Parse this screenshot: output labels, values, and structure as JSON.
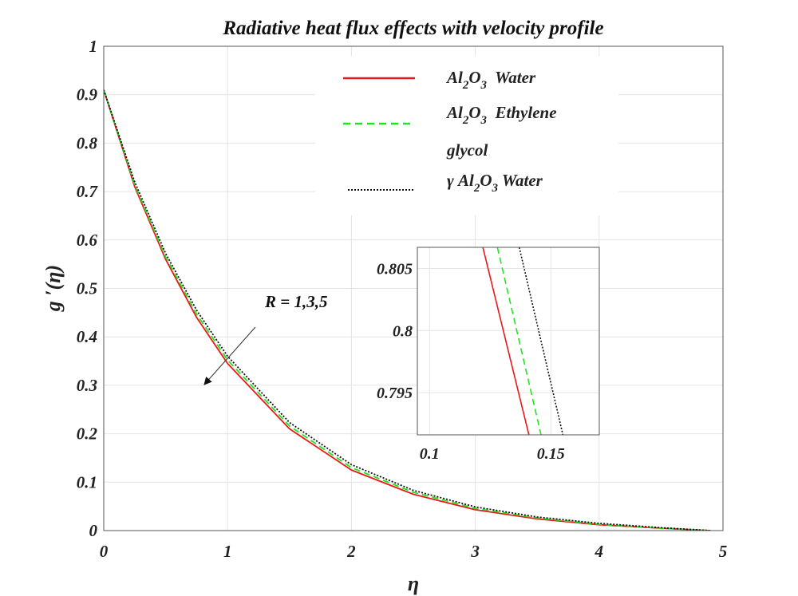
{
  "chart_data": {
    "type": "line",
    "title": "Radiative heat flux effects with velocity profile",
    "xlabel": "η",
    "ylabel": "g ′(η)",
    "xlim": [
      0,
      5
    ],
    "ylim": [
      0,
      1
    ],
    "xticks": [
      "0",
      "1",
      "2",
      "3",
      "4",
      "5"
    ],
    "yticks": [
      "0",
      "0.1",
      "0.2",
      "0.3",
      "0.4",
      "0.5",
      "0.6",
      "0.7",
      "0.8",
      "0.9",
      "1"
    ],
    "grid": true,
    "legend_position": "top-right",
    "legend": [
      {
        "prefix": "",
        "main": "Al",
        "sub1": "2",
        "mid": "O",
        "sub2": "3",
        "suffix": "  Water",
        "extra": "",
        "color": "#e8191b",
        "style": "solid"
      },
      {
        "prefix": "",
        "main": "Al",
        "sub1": "2",
        "mid": "O",
        "sub2": "3",
        "suffix": "  Ethylene",
        "extra": "glycol",
        "color": "#1fe51f",
        "style": "dashed"
      },
      {
        "prefix": "γ ",
        "main": "Al",
        "sub1": "2",
        "mid": "O",
        "sub2": "3",
        "suffix": " Water",
        "extra": "",
        "color": "#111111",
        "style": "dotted"
      }
    ],
    "annotation": "R = 1,3,5",
    "series": [
      {
        "color": "#e8191b",
        "style": "solid",
        "x": [
          0,
          0.25,
          0.5,
          0.75,
          1,
          1.5,
          2,
          2.5,
          3,
          3.5,
          4,
          4.5,
          4.9
        ],
        "y": [
          0.91,
          0.71,
          0.56,
          0.44,
          0.345,
          0.21,
          0.125,
          0.075,
          0.043,
          0.024,
          0.012,
          0.005,
          0
        ]
      },
      {
        "color": "#1fe51f",
        "style": "dashed",
        "x": [
          0,
          0.25,
          0.5,
          0.75,
          1,
          1.5,
          2,
          2.5,
          3,
          3.5,
          4,
          4.5,
          4.9
        ],
        "y": [
          0.91,
          0.714,
          0.565,
          0.447,
          0.352,
          0.216,
          0.13,
          0.079,
          0.046,
          0.026,
          0.013,
          0.005,
          0
        ]
      },
      {
        "color": "#111111",
        "style": "dotted",
        "x": [
          0,
          0.25,
          0.5,
          0.75,
          1,
          1.5,
          2,
          2.5,
          3,
          3.5,
          4,
          4.5,
          4.9
        ],
        "y": [
          0.91,
          0.72,
          0.572,
          0.455,
          0.36,
          0.223,
          0.136,
          0.083,
          0.049,
          0.028,
          0.015,
          0.006,
          0
        ]
      }
    ],
    "inset": {
      "xlim": [
        0.095,
        0.17
      ],
      "ylim": [
        0.7916,
        0.8067
      ],
      "xticks": [
        "0.1",
        "0.15"
      ],
      "yticks": [
        "0.795",
        "0.8",
        "0.805"
      ],
      "series": [
        {
          "color": "#e8191b",
          "style": "solid",
          "x": [
            0.122,
            0.141
          ],
          "y": [
            0.8067,
            0.7916
          ]
        },
        {
          "color": "#1fe51f",
          "style": "dashed",
          "x": [
            0.128,
            0.146
          ],
          "y": [
            0.8067,
            0.7916
          ]
        },
        {
          "color": "#111111",
          "style": "dotted",
          "x": [
            0.137,
            0.155
          ],
          "y": [
            0.8067,
            0.7916
          ]
        }
      ]
    }
  }
}
